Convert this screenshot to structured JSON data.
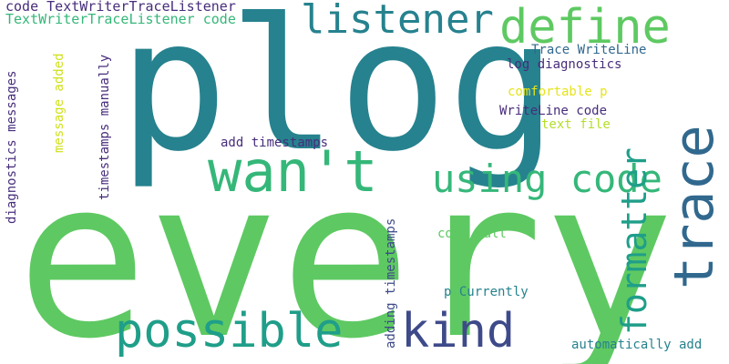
{
  "colors": {
    "background": "#ffffff",
    "green_bright": "#5ec962",
    "teal_dark": "#26828e",
    "yellow_green": "#d0e11c",
    "green_mid": "#35b779",
    "blue_dark": "#31688e",
    "indigo": "#3e4a89",
    "purple": "#472d7b",
    "teal": "#1f9e89",
    "yellow": "#e6e419",
    "lime": "#b5de2b"
  },
  "words": {
    "every": "every",
    "plog": "plog",
    "wan_t": "wan't",
    "trace": "trace",
    "listener": "listener",
    "define": "define",
    "using_code": "using code",
    "formatter": "formatter",
    "possible": "possible",
    "kind": "kind",
    "code_tw_listener": "code TextWriterTraceListener",
    "tw_listener_code": "TextWriterTraceListener code",
    "trace_writeline": "Trace WriteLine",
    "log_diagnostics": "log diagnostics",
    "comfortable_p": "comfortable p",
    "writeline_code": "WriteLine code",
    "text_file": "text file",
    "add_timestamps": "add timestamps",
    "code_call": "code call",
    "p_currently": "p Currently",
    "automatically_add": "automatically add",
    "diagnostics_messages": "diagnostics messages",
    "message_added": "message added",
    "timestamps_manually": "timestamps manually",
    "adding_timestamps": "adding timestamps"
  }
}
